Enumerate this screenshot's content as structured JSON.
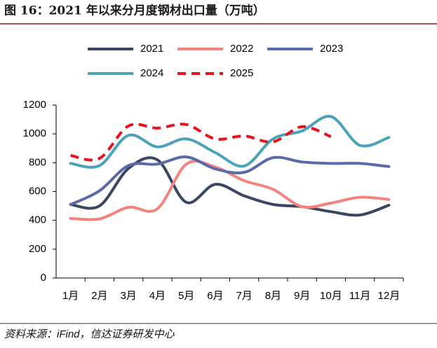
{
  "chart_data": {
    "type": "line",
    "title": "图 16：2021 年以来分月度钢材出口量（万吨）",
    "source": "资料来源：iFind，信达证券研发中心",
    "categories": [
      "1月",
      "2月",
      "3月",
      "4月",
      "5月",
      "6月",
      "7月",
      "8月",
      "9月",
      "10月",
      "11月",
      "12月"
    ],
    "ylim": [
      0,
      1200
    ],
    "yticks": [
      0,
      200,
      400,
      600,
      800,
      1000,
      1200
    ],
    "series": [
      {
        "name": "2021",
        "color": "#3b4663",
        "dashed": false,
        "values": [
          510,
          500,
          760,
          820,
          525,
          650,
          570,
          510,
          495,
          460,
          437,
          505
        ]
      },
      {
        "name": "2022",
        "color": "#f4837d",
        "dashed": false,
        "values": [
          413,
          410,
          490,
          480,
          790,
          770,
          675,
          615,
          495,
          520,
          560,
          545
        ]
      },
      {
        "name": "2023",
        "color": "#5b6aa8",
        "dashed": false,
        "values": [
          510,
          605,
          780,
          790,
          840,
          757,
          733,
          835,
          805,
          795,
          795,
          773
        ]
      },
      {
        "name": "2024",
        "color": "#4aa3b8",
        "dashed": false,
        "values": [
          795,
          780,
          990,
          910,
          965,
          870,
          777,
          965,
          1020,
          1120,
          920,
          975
        ]
      },
      {
        "name": "2025",
        "color": "#e8141b",
        "dashed": true,
        "values": [
          850,
          830,
          1055,
          1040,
          1065,
          965,
          985,
          945,
          1050,
          980,
          null,
          null
        ]
      }
    ]
  }
}
